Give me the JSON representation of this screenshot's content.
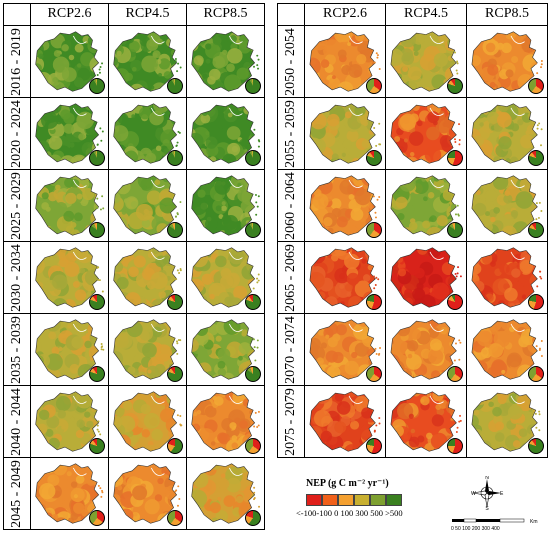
{
  "left_panel": {
    "scenarios": [
      "RCP2.6",
      "RCP4.5",
      "RCP8.5"
    ],
    "periods": [
      "2016 - 2019",
      "2020 - 2024",
      "2025 - 2029",
      "2030 - 2034",
      "2035 - 2039",
      "2040 - 2044",
      "2045 - 2049"
    ]
  },
  "right_panel": {
    "scenarios": [
      "RCP2.6",
      "RCP4.5",
      "RCP8.5"
    ],
    "periods": [
      "2050 - 2054",
      "2055 - 2059",
      "2060 - 2064",
      "2065 - 2069",
      "2070 - 2074",
      "2075 - 2079"
    ]
  },
  "legend": {
    "title": "NEP (g C m⁻² yr⁻¹)",
    "labels": "<-100-100  0  100  300  500 >500",
    "colors": [
      "#e0201a",
      "#f0601a",
      "#f4a030",
      "#c8b030",
      "#7ea030",
      "#3a8020"
    ]
  },
  "compass": {
    "n": "N",
    "s": "S",
    "e": "E",
    "w": "W"
  },
  "scale_bar": {
    "ticks": "0 50 100   200   300   400",
    "unit": "Km"
  }
}
